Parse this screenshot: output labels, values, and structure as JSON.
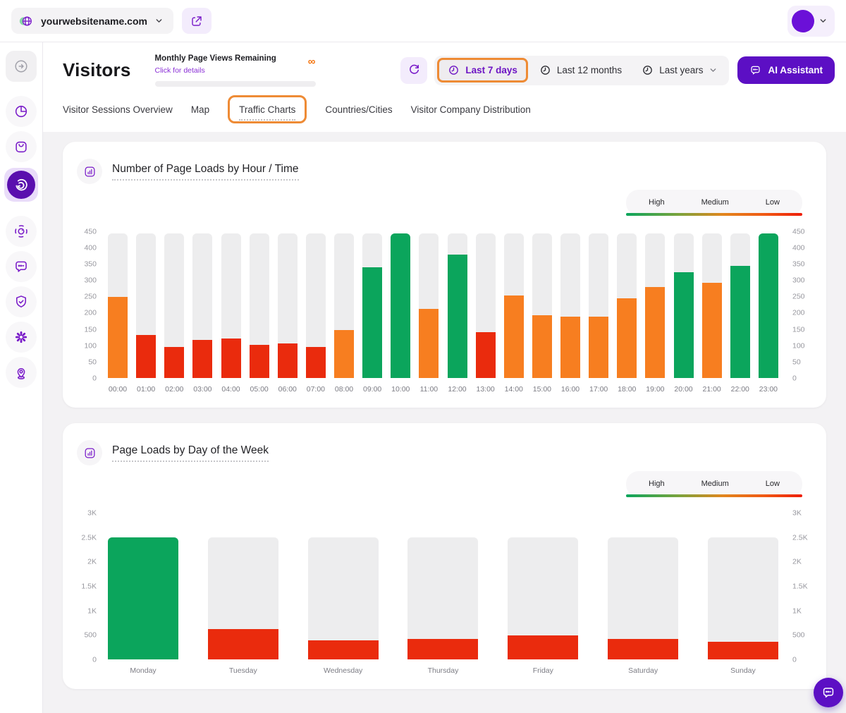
{
  "colors": {
    "purple": "#7a1cc9",
    "purple_deep": "#5c0fc4",
    "purple_light_bg": "#f3ecfc",
    "highlight_orange": "#ee8b35",
    "track_gray": "#ededee",
    "link_purple": "#8a2fd6",
    "infinity_orange": "#f4730c"
  },
  "level_colors": {
    "high": "#0ba55c",
    "medium": "#f77e20",
    "low": "#ea2b0d"
  },
  "topbar": {
    "website": "yourwebsitename.com"
  },
  "sidebar": {
    "items": [
      "collapse",
      "pie-chart",
      "shopping-bag",
      "visitors-radar",
      "session-focus",
      "chat",
      "shield-check",
      "gear",
      "location-pin"
    ],
    "active_item": "visitors-radar"
  },
  "header": {
    "title": "Visitors",
    "quota_label": "Monthly Page Views Remaining",
    "quota_link": "Click for details",
    "quota_value": "∞",
    "ranges": [
      "Last 7 days",
      "Last 12 months",
      "Last years"
    ],
    "active_range": "Last 7 days",
    "ai_button": "AI Assistant"
  },
  "tabs": {
    "items": [
      "Visitor Sessions Overview",
      "Map",
      "Traffic Charts",
      "Countries/Cities",
      "Visitor Company Distribution"
    ],
    "active": "Traffic Charts"
  },
  "chart_data": [
    {
      "type": "bar",
      "title": "Number of Page Loads by Hour / Time",
      "legend": [
        "High",
        "Medium",
        "Low"
      ],
      "legend_position": "top-right",
      "grid": false,
      "categories": [
        "00:00",
        "01:00",
        "02:00",
        "03:00",
        "04:00",
        "05:00",
        "06:00",
        "07:00",
        "08:00",
        "09:00",
        "10:00",
        "11:00",
        "12:00",
        "13:00",
        "14:00",
        "15:00",
        "16:00",
        "17:00",
        "18:00",
        "19:00",
        "20:00",
        "21:00",
        "22:00",
        "23:00"
      ],
      "values": [
        250,
        133,
        95,
        117,
        121,
        102,
        106,
        95,
        149,
        340,
        445,
        212,
        380,
        142,
        255,
        193,
        188,
        190,
        245,
        280,
        325,
        292,
        345,
        445
      ],
      "levels": [
        "medium",
        "low",
        "low",
        "low",
        "low",
        "low",
        "low",
        "low",
        "medium",
        "high",
        "high",
        "medium",
        "high",
        "low",
        "medium",
        "medium",
        "medium",
        "medium",
        "medium",
        "medium",
        "high",
        "medium",
        "high",
        "high"
      ],
      "ylim": [
        0,
        450
      ],
      "yticks": [
        0,
        50,
        100,
        150,
        200,
        250,
        300,
        350,
        400,
        450
      ],
      "ytick_labels": [
        "0",
        "50",
        "100",
        "150",
        "200",
        "250",
        "300",
        "350",
        "400",
        "450"
      ],
      "track_value": 445,
      "dual_axis": true
    },
    {
      "type": "bar",
      "title": "Page Loads by Day of the Week",
      "legend": [
        "High",
        "Medium",
        "Low"
      ],
      "legend_position": "top-right",
      "grid": false,
      "categories": [
        "Monday",
        "Tuesday",
        "Wednesday",
        "Thursday",
        "Friday",
        "Saturday",
        "Sunday"
      ],
      "values": [
        2500,
        620,
        390,
        430,
        500,
        420,
        360
      ],
      "levels": [
        "high",
        "low",
        "low",
        "low",
        "low",
        "low",
        "low"
      ],
      "ylim": [
        0,
        3000
      ],
      "yticks": [
        0,
        500,
        1000,
        1500,
        2000,
        2500,
        3000
      ],
      "ytick_labels": [
        "0",
        "500",
        "1K",
        "1.5K",
        "2K",
        "2.5K",
        "3K"
      ],
      "track_value": 2500,
      "dual_axis": true
    }
  ]
}
